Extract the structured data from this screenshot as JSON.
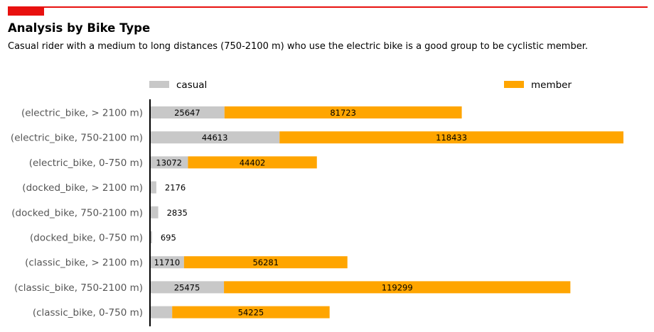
{
  "header": {
    "title": "Analysis by Bike Type",
    "subtitle": "Casual rider with a medium to long distances (750-2100 m) who use the electric bike is a good group to be cyclistic member."
  },
  "colors": {
    "accent": "#e8110f",
    "casual": "#c8c8c8",
    "member": "#ffa500",
    "axis": "#000000",
    "category_label": "#555555"
  },
  "chart_data": {
    "type": "bar",
    "orientation": "horizontal",
    "stacked": true,
    "categories": [
      "(electric_bike, > 2100 m)",
      "(electric_bike, 750-2100 m)",
      "(electric_bike, 0-750 m)",
      "(docked_bike, > 2100 m)",
      "(docked_bike, 750-2100 m)",
      "(docked_bike, 0-750 m)",
      "(classic_bike, > 2100 m)",
      "(classic_bike, 750-2100 m)",
      "(classic_bike, 0-750 m)"
    ],
    "series": [
      {
        "name": "casual",
        "values": [
          25647,
          44613,
          13072,
          2176,
          2835,
          695,
          11710,
          25475,
          7633
        ]
      },
      {
        "name": "member",
        "values": [
          81723,
          118433,
          44402,
          0,
          0,
          0,
          56281,
          119299,
          54225
        ]
      }
    ],
    "xlim": [
      0,
      165000
    ],
    "grid": false,
    "legend": "top",
    "data_labels": true
  }
}
